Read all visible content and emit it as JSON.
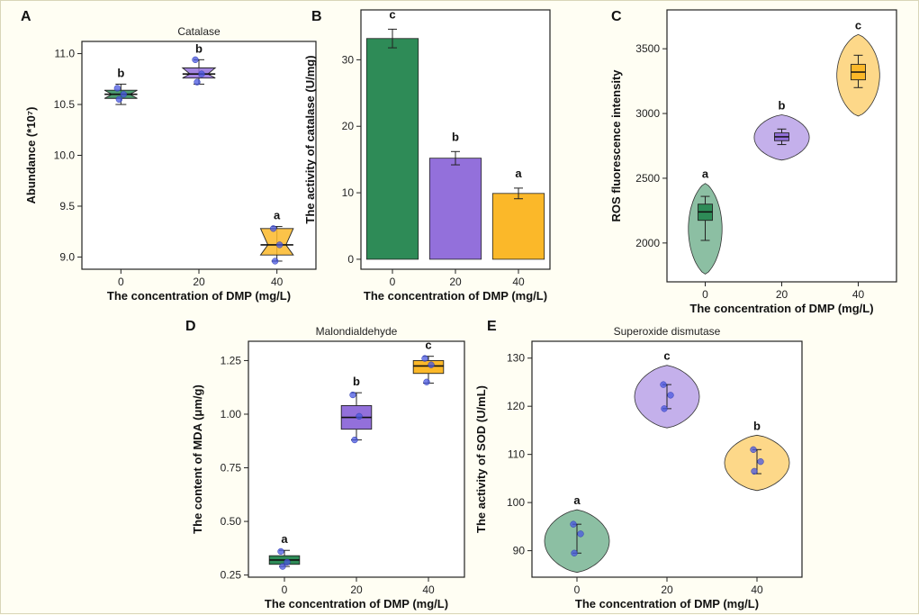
{
  "figure": {
    "colors": {
      "green": "#2e8b57",
      "purple": "#9370db",
      "orange": "#fbb829",
      "point": "#4a58e0"
    },
    "chart_data": [
      {
        "id": "A",
        "letter": "A",
        "type": "box",
        "title": "Catalase",
        "xlabel": "The concentration of DMP (mg/L)",
        "ylabel": "Abundance (*10⁷)",
        "categories": [
          "0",
          "20",
          "40"
        ],
        "ylim": [
          8.88,
          11.12
        ],
        "yticks": [
          9.0,
          9.5,
          10.0,
          10.5,
          11.0
        ],
        "ytick_labels": [
          "9.0",
          "9.5",
          "10.0",
          "10.5",
          "11.0"
        ],
        "groups": [
          {
            "x": "0",
            "q1": 10.56,
            "median": 10.6,
            "q3": 10.64,
            "min": 10.5,
            "max": 10.7,
            "points": [
              10.66,
              10.6,
              10.55
            ],
            "letter": "b",
            "color": "#2e8b57"
          },
          {
            "x": "20",
            "q1": 10.76,
            "median": 10.8,
            "q3": 10.86,
            "min": 10.7,
            "max": 10.94,
            "points": [
              10.94,
              10.8,
              10.72
            ],
            "letter": "b",
            "color": "#9370db"
          },
          {
            "x": "40",
            "q1": 9.02,
            "median": 9.12,
            "q3": 9.28,
            "min": 8.96,
            "max": 9.3,
            "points": [
              9.28,
              9.12,
              8.96
            ],
            "letter": "a",
            "color": "#fbb829"
          }
        ]
      },
      {
        "id": "B",
        "letter": "B",
        "type": "bar",
        "title": "",
        "xlabel": "The concentration of DMP (mg/L)",
        "ylabel": "The activity of catalase (U/mg)",
        "categories": [
          "0",
          "20",
          "40"
        ],
        "ylim": [
          -1.5,
          37.5
        ],
        "yticks": [
          0,
          10,
          20,
          30
        ],
        "ytick_labels": [
          "0",
          "10",
          "20",
          "30"
        ],
        "values": [
          33.2,
          15.2,
          9.9
        ],
        "errors": [
          1.4,
          1.0,
          0.8
        ],
        "letters": [
          "c",
          "b",
          "a"
        ],
        "colors": [
          "#2e8b57",
          "#9370db",
          "#fbb829"
        ]
      },
      {
        "id": "C",
        "letter": "C",
        "type": "violin",
        "title": "",
        "xlabel": "The concentration of DMP (mg/L)",
        "ylabel": "ROS fluorescence intensity",
        "categories": [
          "0",
          "20",
          "40"
        ],
        "ylim": [
          1700,
          3800
        ],
        "yticks": [
          2000,
          2500,
          3000,
          3500
        ],
        "ytick_labels": [
          "2000",
          "2500",
          "3000",
          "3500"
        ],
        "groups": [
          {
            "x": "0",
            "vmin": 1760,
            "vmax": 2460,
            "q1": 2175,
            "median": 2240,
            "q3": 2300,
            "min": 2020,
            "max": 2360,
            "letter": "a",
            "color": "#2e8b57",
            "width": 0.22,
            "points": []
          },
          {
            "x": "20",
            "vmin": 2640,
            "vmax": 2990,
            "q1": 2790,
            "median": 2820,
            "q3": 2850,
            "min": 2760,
            "max": 2880,
            "letter": "b",
            "color": "#9370db",
            "width": 0.36,
            "points": []
          },
          {
            "x": "40",
            "vmin": 2980,
            "vmax": 3610,
            "q1": 3260,
            "median": 3320,
            "q3": 3380,
            "min": 3200,
            "max": 3450,
            "letter": "c",
            "color": "#fbb829",
            "width": 0.28,
            "points": []
          }
        ]
      },
      {
        "id": "D",
        "letter": "D",
        "type": "box",
        "title": "Malondialdehyde",
        "xlabel": "The concentration of DMP (mg/L)",
        "ylabel": "The content of MDA (μm/g)",
        "categories": [
          "0",
          "20",
          "40"
        ],
        "ylim": [
          0.24,
          1.34
        ],
        "yticks": [
          0.25,
          0.5,
          0.75,
          1.0,
          1.25
        ],
        "ytick_labels": [
          "0.25",
          "0.50",
          "0.75",
          "1.00",
          "1.25"
        ],
        "groups": [
          {
            "x": "0",
            "q1": 0.3,
            "median": 0.32,
            "q3": 0.34,
            "min": 0.29,
            "max": 0.365,
            "points": [
              0.36,
              0.31,
              0.29
            ],
            "letter": "a",
            "color": "#2e8b57"
          },
          {
            "x": "20",
            "q1": 0.93,
            "median": 0.985,
            "q3": 1.04,
            "min": 0.88,
            "max": 1.1,
            "points": [
              1.09,
              0.99,
              0.88
            ],
            "letter": "b",
            "color": "#9370db"
          },
          {
            "x": "40",
            "q1": 1.19,
            "median": 1.225,
            "q3": 1.25,
            "min": 1.145,
            "max": 1.27,
            "points": [
              1.26,
              1.23,
              1.15
            ],
            "letter": "c",
            "color": "#fbb829"
          }
        ]
      },
      {
        "id": "E",
        "letter": "E",
        "type": "violin",
        "title": "Superoxide dismutase",
        "xlabel": "The concentration of DMP (mg/L)",
        "ylabel": "The activity of SOD (U/mL)",
        "categories": [
          "0",
          "20",
          "40"
        ],
        "ylim": [
          84.5,
          133.5
        ],
        "yticks": [
          90,
          100,
          110,
          120,
          130
        ],
        "ytick_labels": [
          "90",
          "100",
          "110",
          "120",
          "130"
        ],
        "groups": [
          {
            "x": "0",
            "vmin": 85.5,
            "vmax": 98.5,
            "min": 89.5,
            "max": 95.5,
            "q1": null,
            "median": null,
            "q3": null,
            "points": [
              95.5,
              93.5,
              89.5
            ],
            "letter": "a",
            "color": "#2e8b57",
            "width": 0.36
          },
          {
            "x": "20",
            "vmin": 115.5,
            "vmax": 128.5,
            "min": 119.5,
            "max": 124.5,
            "q1": null,
            "median": null,
            "q3": null,
            "points": [
              124.5,
              122.3,
              119.5
            ],
            "letter": "c",
            "color": "#9370db",
            "width": 0.36
          },
          {
            "x": "40",
            "vmin": 102.5,
            "vmax": 114.0,
            "min": 106.0,
            "max": 111.0,
            "q1": null,
            "median": null,
            "q3": null,
            "points": [
              111.0,
              108.5,
              106.5
            ],
            "letter": "b",
            "color": "#fbb829",
            "width": 0.36
          }
        ]
      }
    ]
  }
}
